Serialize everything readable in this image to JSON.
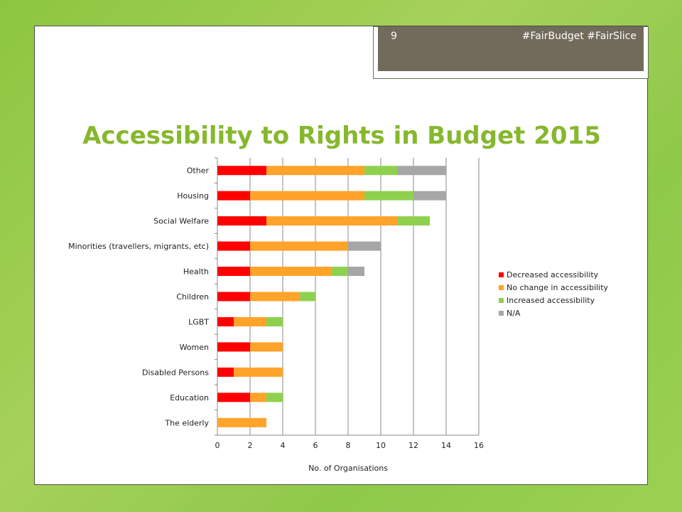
{
  "slide": {
    "page_number": "9",
    "hashtags": "#FairBudget #FairSlice",
    "title": "Accessibility to Rights in Budget 2015"
  },
  "chart_data": {
    "type": "bar",
    "orientation": "horizontal",
    "stacked": true,
    "categories": [
      "Other",
      "Housing",
      "Social Welfare",
      "Minorities (travellers, migrants, etc)",
      "Health",
      "Children",
      "LGBT",
      "Women",
      "Disabled Persons",
      "Education",
      "The elderly"
    ],
    "series": [
      {
        "name": "Decreased accessibility",
        "color": "#ff0000",
        "values": [
          3,
          2,
          3,
          2,
          2,
          2,
          1,
          2,
          1,
          2,
          0
        ]
      },
      {
        "name": "No change in accessibility",
        "color": "#ffa32a",
        "values": [
          6,
          7,
          8,
          6,
          5,
          3,
          2,
          2,
          3,
          1,
          3
        ]
      },
      {
        "name": "Increased accessibility",
        "color": "#8fd14f",
        "values": [
          2,
          3,
          2,
          0,
          1,
          1,
          1,
          0,
          0,
          1,
          0
        ]
      },
      {
        "name": "N/A",
        "color": "#a6a6a6",
        "values": [
          3,
          2,
          0,
          2,
          1,
          0,
          0,
          0,
          0,
          0,
          0
        ]
      }
    ],
    "xlabel": "No. of Organisations",
    "ylabel": "",
    "xlim": [
      0,
      16
    ],
    "xticks": [
      "0",
      "2",
      "4",
      "6",
      "8",
      "10",
      "12",
      "14",
      "16"
    ],
    "grid": true,
    "legend": "right"
  }
}
